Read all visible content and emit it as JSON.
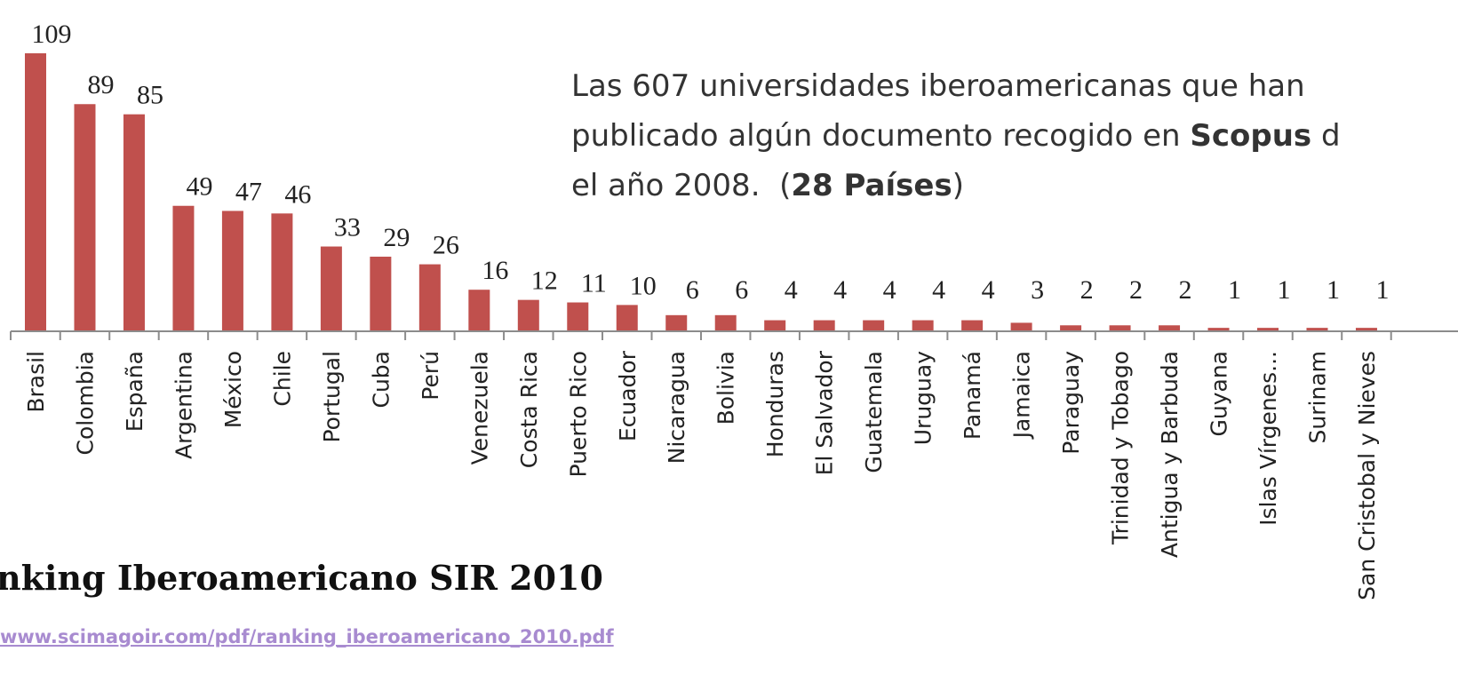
{
  "chart_data": {
    "type": "bar",
    "categories": [
      "Brasil",
      "Colombia",
      "España",
      "Argentina",
      "México",
      "Chile",
      "Portugal",
      "Cuba",
      "Perú",
      "Venezuela",
      "Costa Rica",
      "Puerto Rico",
      "Ecuador",
      "Nicaragua",
      "Bolivia",
      "Honduras",
      "El Salvador",
      "Guatemala",
      "Uruguay",
      "Panamá",
      "Jamaica",
      "Paraguay",
      "Trinidad y Tobago",
      "Antigua y Barbuda",
      "Guyana",
      "Islas Vírgenes...",
      "Surinam",
      "San Cristobal y Nieves"
    ],
    "values": [
      109,
      89,
      85,
      49,
      47,
      46,
      33,
      29,
      26,
      16,
      12,
      11,
      10,
      6,
      6,
      4,
      4,
      4,
      4,
      4,
      3,
      2,
      2,
      2,
      1,
      1,
      1,
      1
    ],
    "color": "#c0504d",
    "annotation_lines": [
      [
        {
          "text": "Las 607 universidades iberoamericanas que han"
        }
      ],
      [
        {
          "text": "publicado algún documento recogido en "
        },
        {
          "text": "Scopus",
          "bold": true
        },
        {
          "text": " d"
        }
      ],
      [
        {
          "text": "el año 2008.  ("
        },
        {
          "text": "28 Países",
          "bold": true
        },
        {
          "text": ")"
        }
      ]
    ]
  },
  "footer": {
    "title": "nking Iberoamericano SIR 2010",
    "link": "www.scimagoir.com/pdf/ranking_iberoamericano_2010.pdf"
  }
}
